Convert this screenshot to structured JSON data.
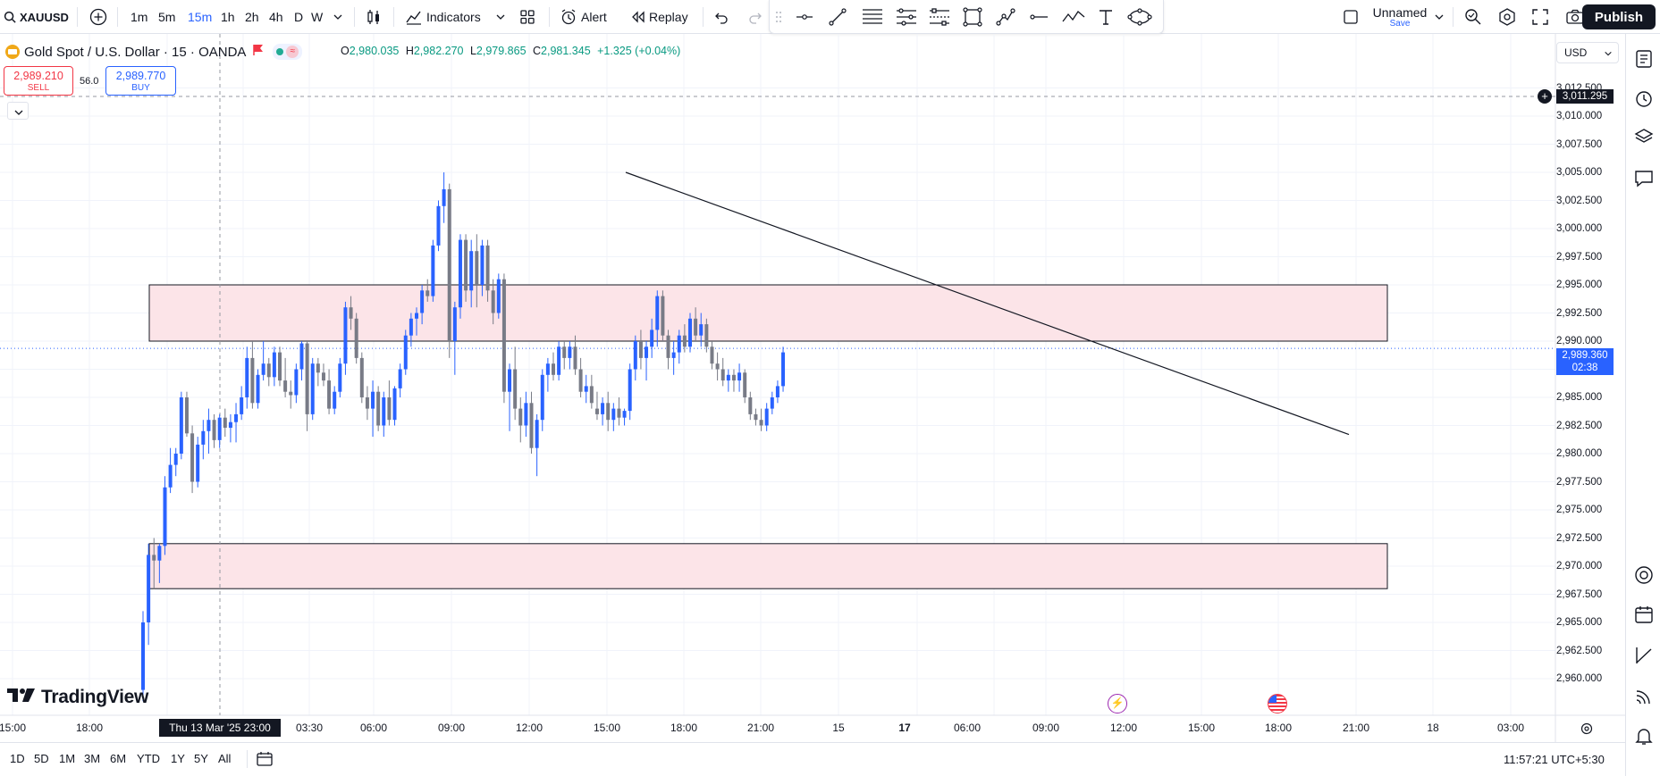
{
  "toolbar": {
    "symbol": "XAUUSD",
    "timeframes": [
      "1m",
      "5m",
      "15m",
      "1h",
      "2h",
      "4h",
      "D",
      "W"
    ],
    "active_timeframe": "15m",
    "indicators_label": "Indicators",
    "alert_label": "Alert",
    "replay_label": "Replay",
    "layout_name": "Unnamed",
    "layout_status": "Save",
    "publish_label": "Publish"
  },
  "legend": {
    "title": "Gold Spot / U.S. Dollar · 15 · OANDA",
    "open_label": "O",
    "open": "2,980.035",
    "high_label": "H",
    "high": "2,982.270",
    "low_label": "L",
    "low": "2,979.865",
    "close_label": "C",
    "close": "2,981.345",
    "change": "+1.325 (+0.04%)"
  },
  "trade": {
    "sell_price": "2,989.210",
    "sell_label": "SELL",
    "spread": "56.0",
    "buy_price": "2,989.770",
    "buy_label": "BUY"
  },
  "currency": "USD",
  "price_axis": {
    "labels": [
      "3,012.500",
      "3,010.000",
      "3,007.500",
      "3,005.000",
      "3,002.500",
      "3,000.000",
      "2,997.500",
      "2,995.000",
      "2,992.500",
      "2,990.000",
      "2,987.500",
      "2,985.000",
      "2,982.500",
      "2,980.000",
      "2,977.500",
      "2,975.000",
      "2,972.500",
      "2,970.000",
      "2,967.500",
      "2,965.000",
      "2,962.500",
      "2,960.000"
    ],
    "crosshair_price": "3,011.295",
    "last_price": "2,989.360",
    "countdown": "02:38"
  },
  "time_axis": {
    "labels": [
      {
        "text": "15:00",
        "bold": false
      },
      {
        "text": "18:00",
        "bold": false
      },
      {
        "text": "03:30",
        "bold": false
      },
      {
        "text": "06:00",
        "bold": false
      },
      {
        "text": "09:00",
        "bold": false
      },
      {
        "text": "12:00",
        "bold": false
      },
      {
        "text": "15:00",
        "bold": false
      },
      {
        "text": "18:00",
        "bold": false
      },
      {
        "text": "21:00",
        "bold": false
      },
      {
        "text": "15",
        "bold": false
      },
      {
        "text": "17",
        "bold": true
      },
      {
        "text": "06:00",
        "bold": false
      },
      {
        "text": "09:00",
        "bold": false
      },
      {
        "text": "12:00",
        "bold": false
      },
      {
        "text": "15:00",
        "bold": false
      },
      {
        "text": "18:00",
        "bold": false
      },
      {
        "text": "21:00",
        "bold": false
      },
      {
        "text": "18",
        "bold": false
      },
      {
        "text": "03:00",
        "bold": false
      }
    ],
    "crosshair_time": "Thu 13 Mar '25   23:00"
  },
  "brand": "TradingView",
  "bottom": {
    "ranges": [
      "1D",
      "5D",
      "1M",
      "3M",
      "6M",
      "YTD",
      "1Y",
      "5Y",
      "All"
    ],
    "clock": "11:57:21 UTC+5:30"
  },
  "colors": {
    "up": "#2962ff",
    "down": "#787b86",
    "zone_fill": "#fce4e8",
    "accent": "#2962ff",
    "sell": "#f23645"
  },
  "chart_data": {
    "type": "candlestick",
    "y_range": [
      2958.5,
      3013.5
    ],
    "zones": [
      {
        "from": 2990.0,
        "to": 2995.0
      },
      {
        "from": 2968.0,
        "to": 2972.0
      }
    ],
    "trendline": [
      [
        3005.0
      ],
      [
        2981.7
      ]
    ],
    "candles": [
      [
        2959.0,
        2966.0,
        2958.0,
        2965.0
      ],
      [
        2965.0,
        2972.0,
        2963.0,
        2971.0
      ],
      [
        2971.0,
        2972.5,
        2968.0,
        2970.5
      ],
      [
        2970.5,
        2972.0,
        2968.5,
        2971.8
      ],
      [
        2971.8,
        2978.0,
        2971.0,
        2977.0
      ],
      [
        2977.0,
        2980.5,
        2976.5,
        2979.0
      ],
      [
        2979.0,
        2980.5,
        2978.0,
        2980.0
      ],
      [
        2980.0,
        2985.5,
        2979.5,
        2985.0
      ],
      [
        2985.0,
        2985.5,
        2981.5,
        2981.8
      ],
      [
        2981.8,
        2982.5,
        2976.5,
        2977.5
      ],
      [
        2977.5,
        2981.5,
        2977.0,
        2980.8
      ],
      [
        2980.8,
        2983.0,
        2979.5,
        2982.0
      ],
      [
        2982.0,
        2984.0,
        2980.0,
        2983.0
      ],
      [
        2983.0,
        2983.5,
        2980.5,
        2981.2
      ],
      [
        2981.2,
        2983.5,
        2980.5,
        2983.2
      ],
      [
        2983.2,
        2984.0,
        2981.5,
        2982.3
      ],
      [
        2982.3,
        2983.5,
        2981.0,
        2982.8
      ],
      [
        2982.8,
        2984.5,
        2981.0,
        2983.5
      ],
      [
        2983.5,
        2986.0,
        2983.0,
        2985.0
      ],
      [
        2985.0,
        2989.5,
        2984.0,
        2988.5
      ],
      [
        2988.5,
        2990.0,
        2984.0,
        2984.5
      ],
      [
        2984.5,
        2987.5,
        2984.0,
        2987.0
      ],
      [
        2987.0,
        2990.0,
        2986.5,
        2988.0
      ],
      [
        2988.0,
        2988.5,
        2986.0,
        2986.8
      ],
      [
        2986.8,
        2989.5,
        2986.0,
        2989.0
      ],
      [
        2989.0,
        2989.5,
        2986.0,
        2986.5
      ],
      [
        2986.5,
        2988.5,
        2985.0,
        2985.5
      ],
      [
        2985.5,
        2986.5,
        2984.0,
        2985.2
      ],
      [
        2985.2,
        2988.0,
        2984.5,
        2987.5
      ],
      [
        2987.5,
        2990.0,
        2986.5,
        2989.8
      ],
      [
        2989.8,
        2990.0,
        2982.0,
        2983.5
      ],
      [
        2983.5,
        2988.5,
        2983.0,
        2988.0
      ],
      [
        2988.0,
        2988.5,
        2986.0,
        2987.2
      ],
      [
        2987.2,
        2988.0,
        2986.0,
        2986.5
      ],
      [
        2986.5,
        2987.5,
        2983.5,
        2984.0
      ],
      [
        2984.0,
        2986.0,
        2983.5,
        2985.5
      ],
      [
        2985.5,
        2988.5,
        2985.0,
        2988.0
      ],
      [
        2988.0,
        2993.5,
        2987.0,
        2993.0
      ],
      [
        2993.0,
        2994.0,
        2991.0,
        2992.0
      ],
      [
        2992.0,
        2992.5,
        2988.0,
        2988.5
      ],
      [
        2988.5,
        2989.0,
        2984.5,
        2985.0
      ],
      [
        2985.0,
        2986.0,
        2983.0,
        2984.0
      ],
      [
        2984.0,
        2986.5,
        2981.5,
        2985.5
      ],
      [
        2985.5,
        2986.0,
        2982.0,
        2982.5
      ],
      [
        2982.5,
        2985.5,
        2981.5,
        2985.0
      ],
      [
        2985.0,
        2986.5,
        2982.5,
        2983.0
      ],
      [
        2983.0,
        2986.0,
        2982.5,
        2985.8
      ],
      [
        2985.8,
        2988.0,
        2985.0,
        2987.5
      ],
      [
        2987.5,
        2991.0,
        2987.0,
        2990.5
      ],
      [
        2990.5,
        2992.5,
        2989.5,
        2992.0
      ],
      [
        2992.0,
        2993.0,
        2990.5,
        2992.5
      ],
      [
        2992.5,
        2995.0,
        2991.5,
        2994.5
      ],
      [
        2994.5,
        2995.5,
        2993.5,
        2994.0
      ],
      [
        2994.0,
        2999.0,
        2993.5,
        2998.5
      ],
      [
        2998.5,
        3002.5,
        2998.0,
        3002.0
      ],
      [
        3002.0,
        3005.0,
        3000.5,
        3003.5
      ],
      [
        3003.5,
        3004.0,
        2988.5,
        2990.0
      ],
      [
        2990.0,
        2993.5,
        2987.0,
        2993.0
      ],
      [
        2993.0,
        2999.5,
        2992.0,
        2999.0
      ],
      [
        2999.0,
        2999.5,
        2993.5,
        2994.5
      ],
      [
        2994.5,
        2999.0,
        2993.0,
        2998.0
      ],
      [
        2998.0,
        2999.5,
        2993.0,
        2995.0
      ],
      [
        2995.0,
        2999.0,
        2994.0,
        2998.5
      ],
      [
        2998.5,
        2999.0,
        2993.5,
        2994.5
      ],
      [
        2994.5,
        2995.5,
        2991.5,
        2992.5
      ],
      [
        2992.5,
        2996.0,
        2992.0,
        2995.5
      ],
      [
        2995.5,
        2996.0,
        2984.5,
        2985.5
      ],
      [
        2985.5,
        2988.0,
        2982.0,
        2987.5
      ],
      [
        2987.5,
        2989.5,
        2983.0,
        2984.0
      ],
      [
        2984.0,
        2985.0,
        2981.0,
        2982.5
      ],
      [
        2982.5,
        2985.5,
        2981.5,
        2984.5
      ],
      [
        2984.5,
        2985.5,
        2980.0,
        2980.5
      ],
      [
        2980.5,
        2983.5,
        2978.0,
        2983.0
      ],
      [
        2983.0,
        2987.5,
        2982.0,
        2987.0
      ],
      [
        2987.0,
        2988.5,
        2985.5,
        2988.0
      ],
      [
        2988.0,
        2989.0,
        2986.5,
        2987.0
      ],
      [
        2987.0,
        2990.0,
        2986.5,
        2989.5
      ],
      [
        2989.5,
        2990.0,
        2987.5,
        2988.5
      ],
      [
        2988.5,
        2990.0,
        2987.5,
        2989.5
      ],
      [
        2989.5,
        2990.5,
        2987.0,
        2987.5
      ],
      [
        2987.5,
        2988.5,
        2985.0,
        2985.5
      ],
      [
        2985.5,
        2987.0,
        2984.5,
        2986.0
      ],
      [
        2986.0,
        2987.0,
        2984.0,
        2984.5
      ],
      [
        2984.0,
        2985.5,
        2983.0,
        2983.5
      ],
      [
        2983.5,
        2985.0,
        2982.5,
        2984.5
      ],
      [
        2984.5,
        2985.5,
        2982.0,
        2983.0
      ],
      [
        2983.0,
        2984.5,
        2982.0,
        2984.0
      ],
      [
        2984.0,
        2985.0,
        2982.5,
        2983.2
      ],
      [
        2983.2,
        2984.0,
        2982.5,
        2983.8
      ],
      [
        2983.8,
        2988.0,
        2983.0,
        2987.5
      ],
      [
        2987.5,
        2990.5,
        2986.5,
        2990.0
      ],
      [
        2990.0,
        2991.0,
        2987.5,
        2988.5
      ],
      [
        2988.5,
        2990.0,
        2986.5,
        2989.5
      ],
      [
        2989.5,
        2992.0,
        2988.5,
        2991.0
      ],
      [
        2991.0,
        2994.5,
        2989.5,
        2994.0
      ],
      [
        2994.0,
        2994.5,
        2990.0,
        2990.5
      ],
      [
        2990.5,
        2991.0,
        2987.5,
        2988.5
      ],
      [
        2988.5,
        2990.0,
        2987.0,
        2989.0
      ],
      [
        2989.0,
        2991.0,
        2988.0,
        2990.5
      ],
      [
        2990.5,
        2991.5,
        2989.0,
        2989.5
      ],
      [
        2989.5,
        2992.5,
        2989.0,
        2992.0
      ],
      [
        2992.0,
        2993.0,
        2990.0,
        2990.5
      ],
      [
        2990.5,
        2992.5,
        2989.5,
        2991.5
      ],
      [
        2991.5,
        2992.0,
        2989.0,
        2989.5
      ],
      [
        2989.5,
        2990.0,
        2987.5,
        2988.0
      ],
      [
        2988.0,
        2989.0,
        2986.5,
        2987.5
      ],
      [
        2987.5,
        2988.5,
        2986.0,
        2986.5
      ],
      [
        2986.5,
        2987.5,
        2985.5,
        2987.0
      ],
      [
        2987.0,
        2987.5,
        2985.5,
        2986.5
      ],
      [
        2986.5,
        2988.0,
        2985.5,
        2987.2
      ],
      [
        2987.2,
        2987.5,
        2984.5,
        2985.0
      ],
      [
        2985.0,
        2985.5,
        2983.0,
        2983.5
      ],
      [
        2983.5,
        2984.0,
        2982.5,
        2983.0
      ],
      [
        2983.0,
        2984.0,
        2982.0,
        2982.5
      ],
      [
        2982.5,
        2984.5,
        2982.0,
        2984.0
      ],
      [
        2984.0,
        2985.5,
        2983.5,
        2985.0
      ],
      [
        2985.0,
        2986.5,
        2984.5,
        2986.0
      ],
      [
        2986.0,
        2989.5,
        2985.5,
        2989.0
      ]
    ]
  }
}
